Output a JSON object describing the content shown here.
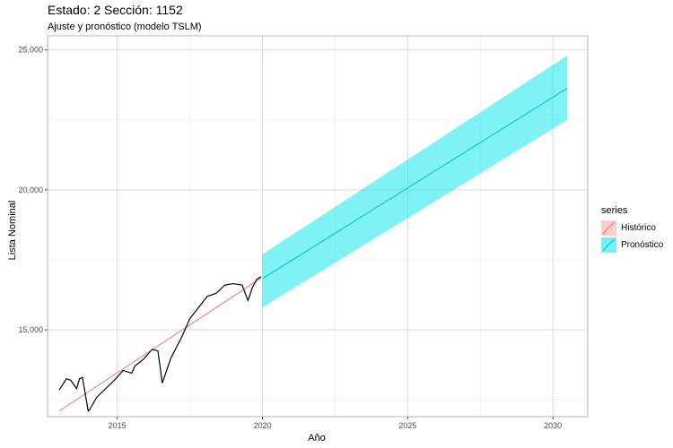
{
  "chart_data": {
    "type": "line",
    "title": "Estado: 2 Sección: 1152",
    "subtitle": "Ajuste y pronóstico (modelo TSLM)",
    "xlabel": "Año",
    "ylabel": "Lista Nominal",
    "xlim": [
      2012.6,
      2031.2
    ],
    "ylim": [
      11900,
      25500
    ],
    "x_ticks": [
      2015,
      2020,
      2025,
      2030
    ],
    "x_tick_labels": [
      "2015",
      "2020",
      "2025",
      "2030"
    ],
    "y_ticks": [
      15000,
      20000,
      25000
    ],
    "y_tick_labels": [
      "15,000",
      "20,000",
      "25,000"
    ],
    "grid": true,
    "legend": {
      "title": "series",
      "position": "right",
      "entries": [
        {
          "name": "Histórico",
          "color": "#F8766D"
        },
        {
          "name": "Pronóstico",
          "color": "#00BFC4"
        }
      ]
    },
    "observed": {
      "color": "#000000",
      "x": [
        2013.0,
        2013.25,
        2013.4,
        2013.6,
        2013.7,
        2013.8,
        2014.0,
        2014.05,
        2014.3,
        2014.6,
        2014.9,
        2015.2,
        2015.5,
        2015.6,
        2015.9,
        2016.2,
        2016.4,
        2016.55,
        2016.7,
        2016.85,
        2017.2,
        2017.5,
        2017.8,
        2018.1,
        2018.4,
        2018.7,
        2019.0,
        2019.3,
        2019.5,
        2019.65,
        2019.8,
        2019.95
      ],
      "y": [
        12850,
        13250,
        13200,
        12900,
        13250,
        13300,
        12100,
        12150,
        12600,
        12900,
        13200,
        13550,
        13450,
        13700,
        13950,
        14300,
        14250,
        13100,
        13550,
        14000,
        14700,
        15400,
        15800,
        16200,
        16300,
        16600,
        16650,
        16600,
        16050,
        16500,
        16800,
        16900
      ]
    },
    "fitted": {
      "name": "Histórico",
      "color": "#F8766D",
      "x": [
        2013.0,
        2019.95
      ],
      "y": [
        12100,
        16850
      ]
    },
    "forecast": {
      "name": "Pronóstico",
      "color": "#00BFC4",
      "x": [
        2020.0,
        2030.5
      ],
      "mean": [
        16830,
        23630
      ],
      "lower": [
        15800,
        22500
      ],
      "upper": [
        17700,
        24800
      ]
    }
  }
}
